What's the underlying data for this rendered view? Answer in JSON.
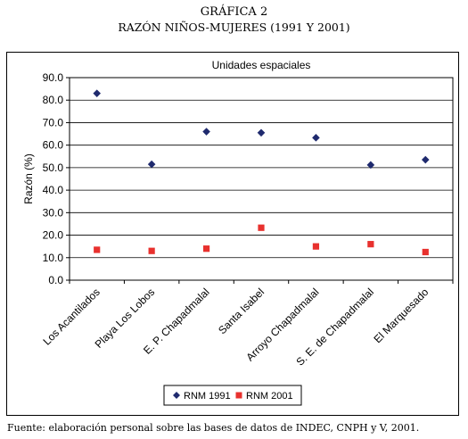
{
  "heading": {
    "line1": "GRÁFICA 2",
    "line2": "RAZÓN NIÑOS-MUJERES (1991 Y 2001)"
  },
  "source_note": "Fuente: elaboración personal sobre las bases de datos de INDEC, CNPH y V, 2001.",
  "chart_data": {
    "type": "scatter",
    "title": "Unidades espaciales",
    "xlabel": "",
    "ylabel": "Razón (%)",
    "ylim": [
      0,
      90
    ],
    "yticks": [
      "0.0",
      "10.0",
      "20.0",
      "30.0",
      "40.0",
      "50.0",
      "60.0",
      "70.0",
      "80.0",
      "90.0"
    ],
    "categories": [
      "Los Acantilados",
      "Playa Los Lobos",
      "E. P. Chapadmalal",
      "Santa Isabel",
      "Arroyo Chapadmalal",
      "S. E. de Chapadmalal",
      "El Marquesado"
    ],
    "series": [
      {
        "name": "RNM 1991",
        "marker": "diamond",
        "color": "#1f2a6e",
        "values": [
          83,
          51.5,
          66,
          65.5,
          63.3,
          51.2,
          53.5
        ]
      },
      {
        "name": "RNM 2001",
        "marker": "square",
        "color": "#e8312e",
        "values": [
          13.5,
          13,
          14,
          23.3,
          15,
          16,
          12.5
        ]
      }
    ],
    "grid": true,
    "legend": "bottom"
  }
}
